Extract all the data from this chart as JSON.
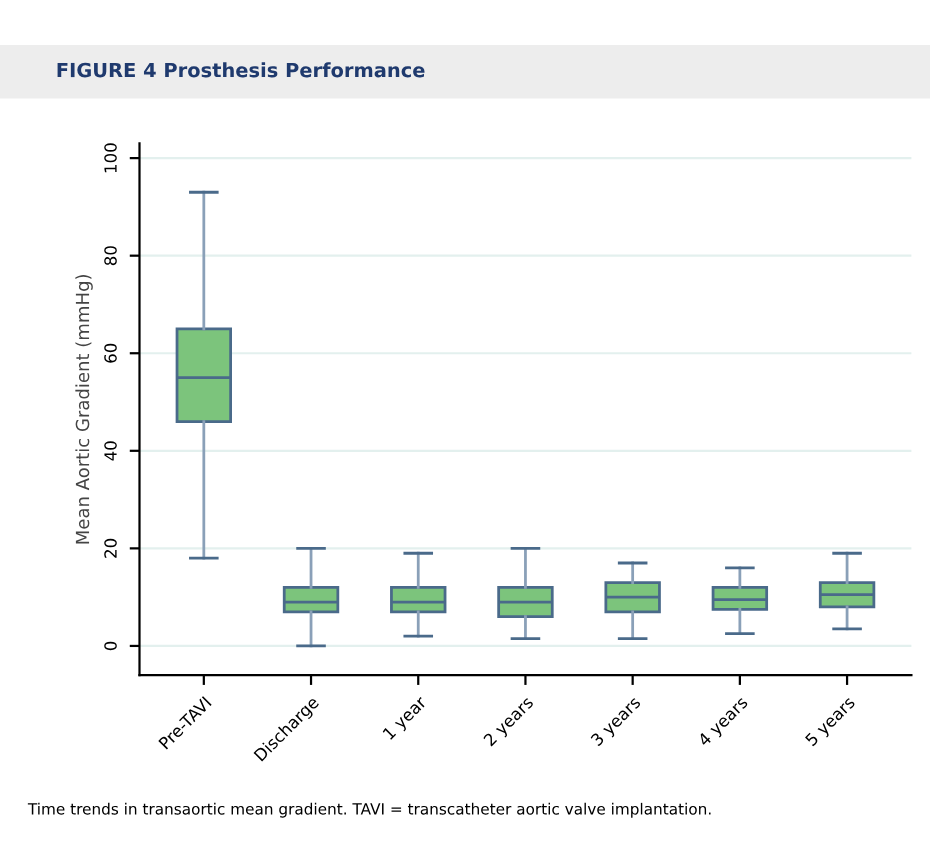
{
  "chart_data": {
    "type": "box",
    "title": "FIGURE 4 Prosthesis Performance",
    "ylabel": "Mean Aortic Gradient (mmHg)",
    "categories": [
      "Pre-TAVI",
      "Discharge",
      "1 year",
      "2 years",
      "3 years",
      "4 years",
      "5 years"
    ],
    "color": "#7cc47c",
    "boxes": [
      {
        "low": 18,
        "q1": 46,
        "median": 55,
        "q3": 65,
        "high": 93
      },
      {
        "low": 0,
        "q1": 7,
        "median": 9,
        "q3": 12,
        "high": 20
      },
      {
        "low": 2,
        "q1": 7,
        "median": 9,
        "q3": 12,
        "high": 19
      },
      {
        "low": 1.5,
        "q1": 6,
        "median": 9,
        "q3": 12,
        "high": 20
      },
      {
        "low": 1.5,
        "q1": 7,
        "median": 10,
        "q3": 13,
        "high": 17
      },
      {
        "low": 2.5,
        "q1": 7.5,
        "median": 9.5,
        "q3": 12,
        "high": 16
      },
      {
        "low": 3.5,
        "q1": 8,
        "median": 10.5,
        "q3": 13,
        "high": 19
      }
    ],
    "ylim": [
      -6,
      103
    ],
    "yticks": [
      0,
      20,
      40,
      60,
      80,
      100
    ],
    "grid": "y",
    "annotations": [
      "Time trends in transaortic mean gradient. TAVI = transcatheter aortic valve implantation."
    ]
  }
}
